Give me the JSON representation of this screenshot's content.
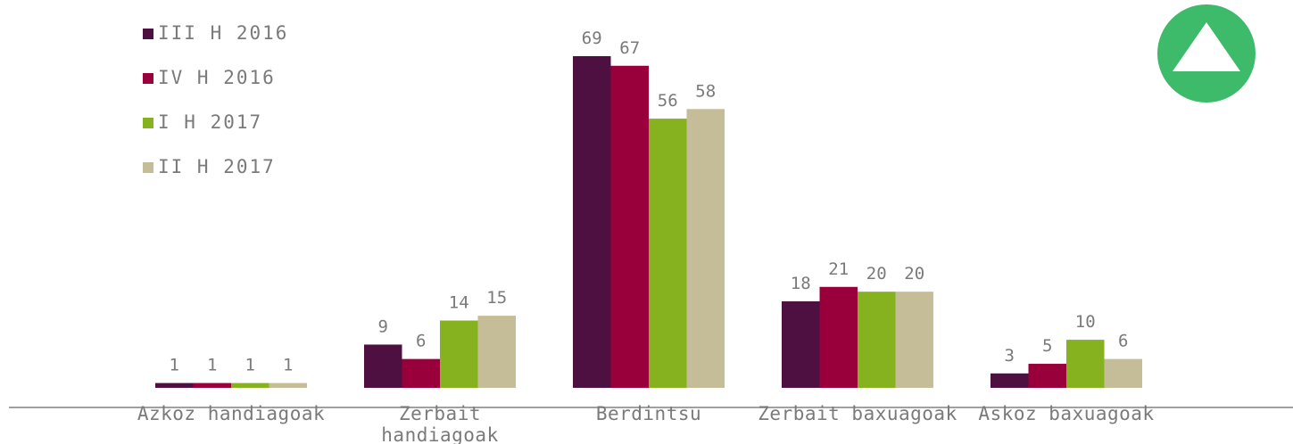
{
  "chart_data": {
    "type": "bar",
    "categories": [
      "Azkoz handiagoak",
      "Zerbait handiagoak",
      "Berdintsu",
      "Zerbait baxuagoak",
      "Askoz baxuagoak"
    ],
    "series": [
      {
        "name": "III H 2016",
        "color": "#4e1040",
        "values": [
          1,
          9,
          69,
          18,
          3
        ]
      },
      {
        "name": "IV H 2016",
        "color": "#99003b",
        "values": [
          1,
          6,
          67,
          21,
          5
        ]
      },
      {
        "name": "I H 2017",
        "color": "#86b21f",
        "values": [
          1,
          14,
          56,
          20,
          10
        ]
      },
      {
        "name": "II H 2017",
        "color": "#c4bd97",
        "values": [
          1,
          15,
          58,
          20,
          6
        ]
      }
    ],
    "ylim": [
      0,
      70
    ],
    "legend": "top-left"
  }
}
